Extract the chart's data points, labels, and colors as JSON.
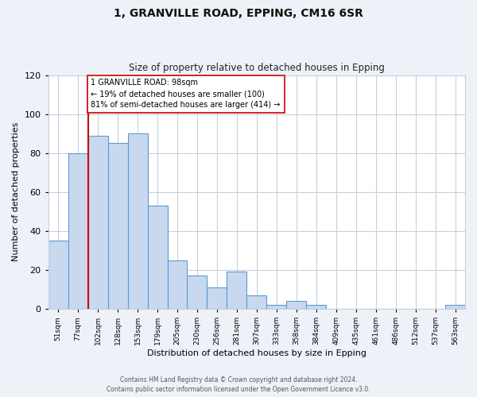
{
  "title": "1, GRANVILLE ROAD, EPPING, CM16 6SR",
  "subtitle": "Size of property relative to detached houses in Epping",
  "xlabel": "Distribution of detached houses by size in Epping",
  "ylabel": "Number of detached properties",
  "bin_labels": [
    "51sqm",
    "77sqm",
    "102sqm",
    "128sqm",
    "153sqm",
    "179sqm",
    "205sqm",
    "230sqm",
    "256sqm",
    "281sqm",
    "307sqm",
    "333sqm",
    "358sqm",
    "384sqm",
    "409sqm",
    "435sqm",
    "461sqm",
    "486sqm",
    "512sqm",
    "537sqm",
    "563sqm"
  ],
  "bar_heights": [
    35,
    80,
    89,
    85,
    90,
    53,
    25,
    17,
    11,
    19,
    7,
    2,
    4,
    2,
    0,
    0,
    0,
    0,
    0,
    0,
    2
  ],
  "bar_color": "#c8d9ef",
  "bar_edge_color": "#5b9bd5",
  "ylim": [
    0,
    120
  ],
  "yticks": [
    0,
    20,
    40,
    60,
    80,
    100,
    120
  ],
  "property_line_x_label": "102sqm",
  "property_line_color": "#cc0000",
  "annotation_line1": "1 GRANVILLE ROAD: 98sqm",
  "annotation_line2": "← 19% of detached houses are smaller (100)",
  "annotation_line3": "81% of semi-detached houses are larger (414) →",
  "annotation_box_edge_color": "#cc0000",
  "annotation_box_face_color": "#ffffff",
  "footer_text": "Contains HM Land Registry data © Crown copyright and database right 2024.\nContains public sector information licensed under the Open Government Licence v3.0.",
  "bg_color": "#eef2f8",
  "plot_bg_color": "#ffffff",
  "grid_color": "#c8d0dc"
}
